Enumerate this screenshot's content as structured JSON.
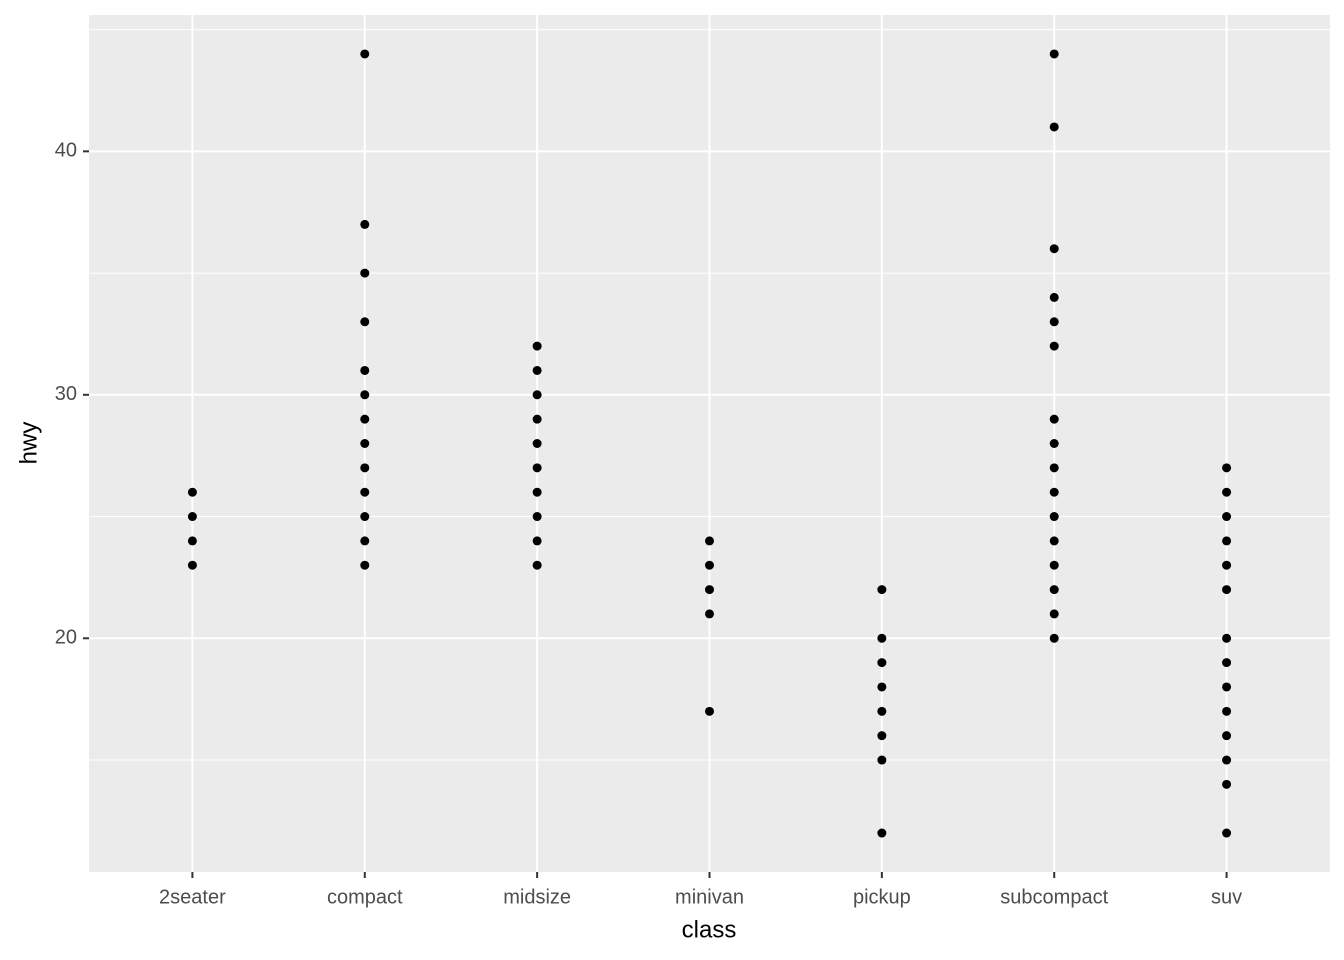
{
  "chart_data": {
    "type": "scatter",
    "x_label": "class",
    "y_label": "hwy",
    "categories": [
      "2seater",
      "compact",
      "midsize",
      "minivan",
      "pickup",
      "subcompact",
      "suv"
    ],
    "values": [
      [
        23,
        24,
        25,
        26
      ],
      [
        44,
        37,
        35,
        33,
        31,
        30,
        29,
        28,
        27,
        26,
        25,
        24,
        23
      ],
      [
        32,
        31,
        30,
        29,
        28,
        27,
        26,
        25,
        24,
        23
      ],
      [
        24,
        23,
        22,
        21,
        17
      ],
      [
        22,
        20,
        19,
        18,
        17,
        16,
        15,
        12
      ],
      [
        44,
        41,
        36,
        34,
        33,
        32,
        29,
        28,
        27,
        26,
        25,
        24,
        23,
        22,
        21,
        20
      ],
      [
        27,
        26,
        25,
        24,
        23,
        22,
        20,
        19,
        18,
        17,
        16,
        15,
        14,
        12
      ]
    ],
    "color": "#000000",
    "ylim": [
      10.4,
      45.6
    ],
    "yticks": [
      20,
      30,
      40
    ],
    "minor_yticks": [
      15,
      25,
      35,
      45
    ],
    "grid": true
  }
}
